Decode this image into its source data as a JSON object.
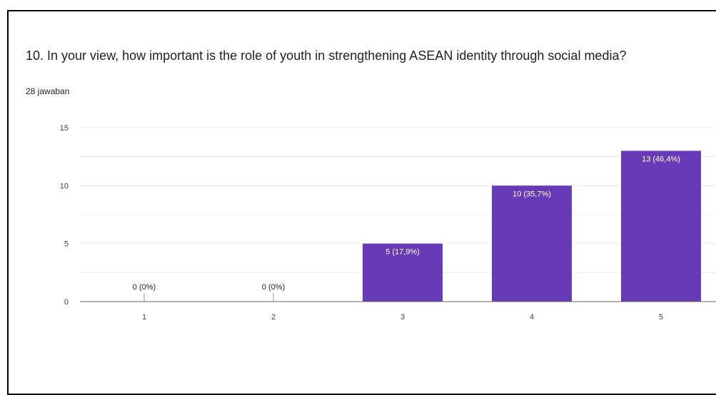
{
  "question": {
    "title": "10. In your view, how important is the role of youth in strengthening ASEAN identity through social media?",
    "response_count": "28 jawaban"
  },
  "colors": {
    "bar": "#673ab7",
    "gridline": "#ececec",
    "axis": "#666666"
  },
  "chart_data": {
    "type": "bar",
    "title": "",
    "xlabel": "",
    "ylabel": "",
    "categories": [
      "1",
      "2",
      "3",
      "4",
      "5"
    ],
    "values": [
      0,
      0,
      5,
      10,
      13
    ],
    "data_labels": [
      "0 (0%)",
      "0 (0%)",
      "5 (17,9%)",
      "10 (35,7%)",
      "13 (46,4%)"
    ],
    "ylim": [
      0,
      15
    ],
    "yticks": [
      0,
      5,
      10,
      15
    ],
    "grid": true,
    "legend": "none"
  }
}
